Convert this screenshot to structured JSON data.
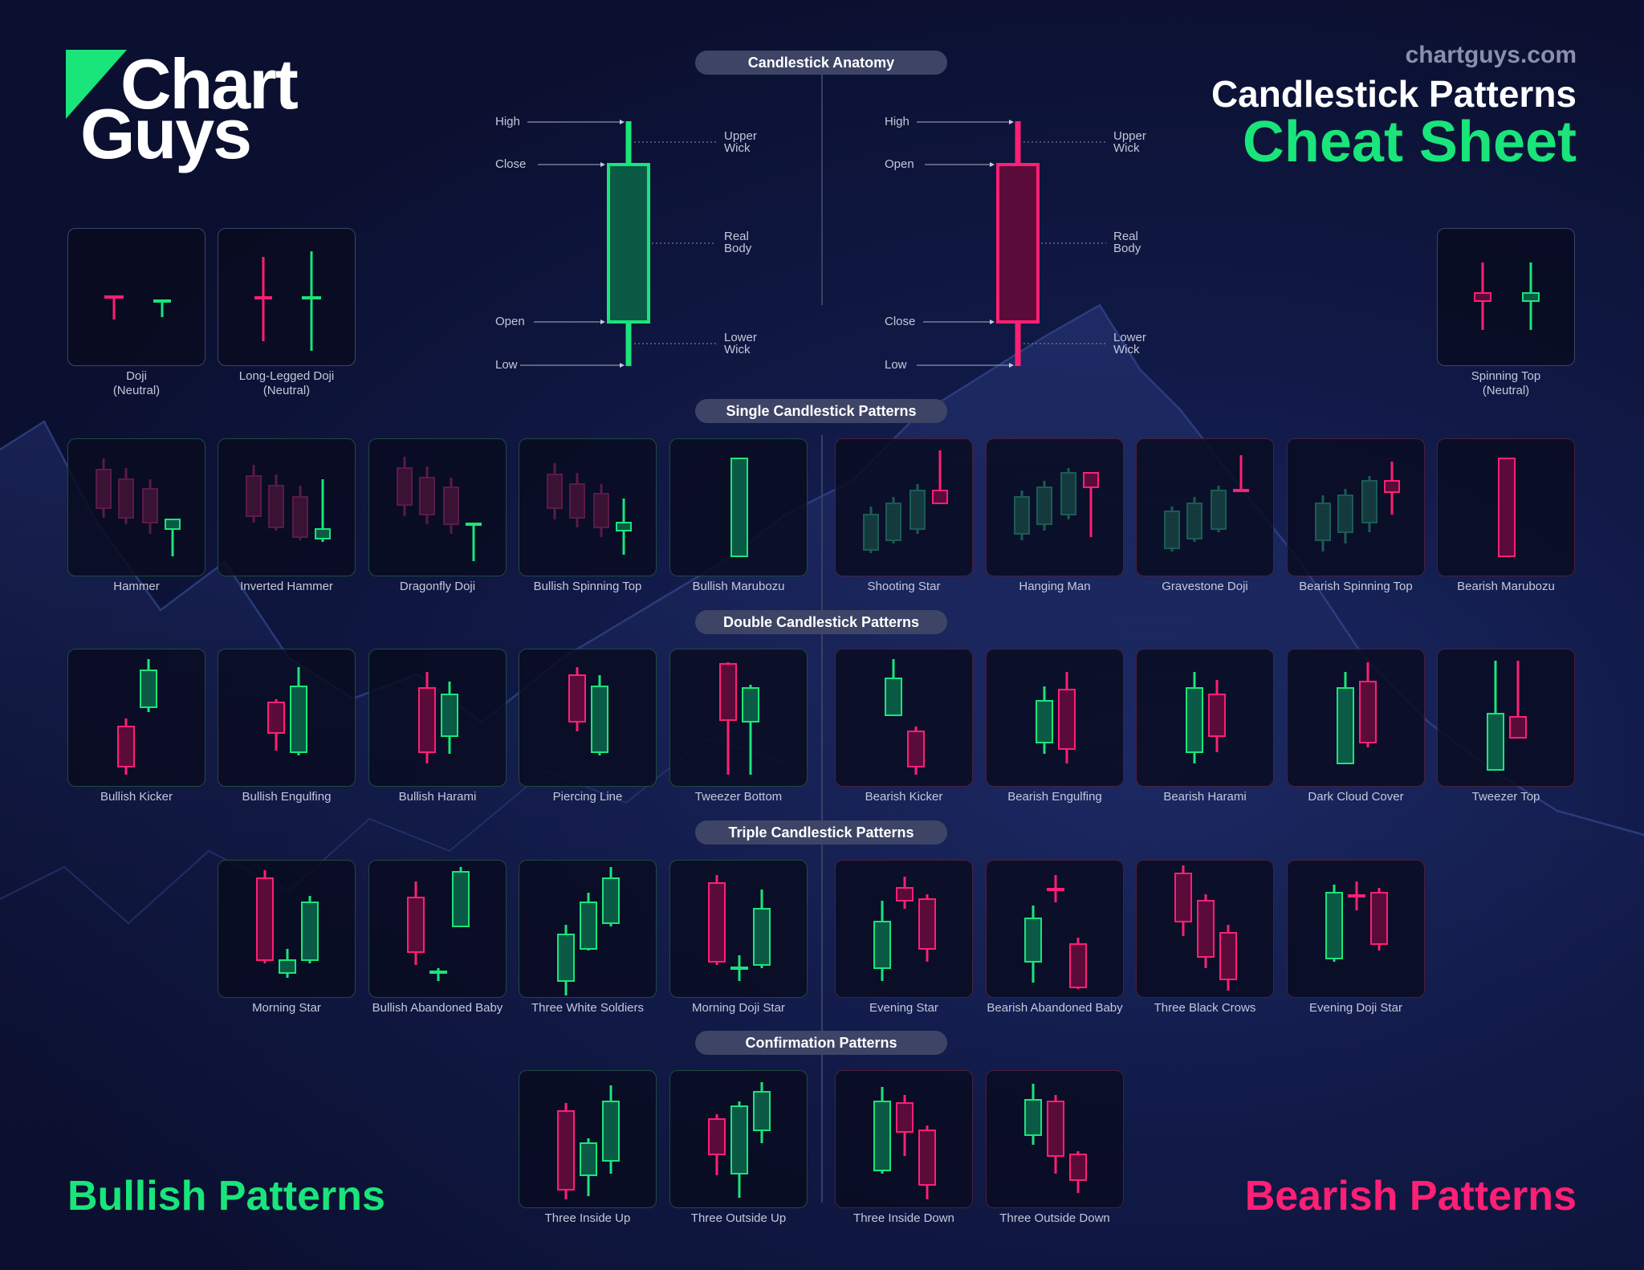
{
  "brand": {
    "logo_line1": "Chart",
    "logo_line2": "Guys",
    "site": "chartguys.com"
  },
  "header": {
    "title_line1": "Candlestick Patterns",
    "title_line2": "Cheat Sheet"
  },
  "colors": {
    "bullish": "#19e57a",
    "bearish": "#ff1f74",
    "background": "#0b1030",
    "pill": "#3d4466"
  },
  "sections": {
    "anatomy": "Candlestick Anatomy",
    "single": "Single Candlestick Patterns",
    "double": "Double Candlestick Patterns",
    "triple": "Triple Candlestick Patterns",
    "confirmation": "Confirmation Patterns"
  },
  "anatomy": {
    "bullish": {
      "high": "High",
      "close": "Close",
      "open": "Open",
      "low": "Low"
    },
    "bearish": {
      "high": "High",
      "open": "Open",
      "close": "Close",
      "low": "Low"
    },
    "parts": {
      "upper_wick": [
        "Upper",
        "Wick"
      ],
      "real_body": [
        "Real",
        "Body"
      ],
      "lower_wick": [
        "Lower",
        "Wick"
      ]
    }
  },
  "neutral": [
    {
      "name": "Doji",
      "sub": "(Neutral)"
    },
    {
      "name": "Long-Legged Doji",
      "sub": "(Neutral)"
    },
    {
      "name": "Spinning Top",
      "sub": "(Neutral)"
    }
  ],
  "single": [
    {
      "name": "Hammer",
      "side": "bull"
    },
    {
      "name": "Inverted Hammer",
      "side": "bull"
    },
    {
      "name": "Dragonfly Doji",
      "side": "bull"
    },
    {
      "name": "Bullish Spinning Top",
      "side": "bull"
    },
    {
      "name": "Bullish Marubozu",
      "side": "bull"
    },
    {
      "name": "Shooting Star",
      "side": "bear"
    },
    {
      "name": "Hanging Man",
      "side": "bear"
    },
    {
      "name": "Gravestone Doji",
      "side": "bear"
    },
    {
      "name": "Bearish Spinning Top",
      "side": "bear"
    },
    {
      "name": "Bearish Marubozu",
      "side": "bear"
    }
  ],
  "double": [
    {
      "name": "Bullish Kicker",
      "side": "bull"
    },
    {
      "name": "Bullish Engulfing",
      "side": "bull"
    },
    {
      "name": "Bullish Harami",
      "side": "bull"
    },
    {
      "name": "Piercing Line",
      "side": "bull"
    },
    {
      "name": "Tweezer Bottom",
      "side": "bull"
    },
    {
      "name": "Bearish Kicker",
      "side": "bear"
    },
    {
      "name": "Bearish Engulfing",
      "side": "bear"
    },
    {
      "name": "Bearish Harami",
      "side": "bear"
    },
    {
      "name": "Dark Cloud Cover",
      "side": "bear"
    },
    {
      "name": "Tweezer Top",
      "side": "bear"
    }
  ],
  "triple": [
    {
      "name": "Morning Star",
      "side": "bull"
    },
    {
      "name": "Bullish Abandoned Baby",
      "side": "bull"
    },
    {
      "name": "Three White Soldiers",
      "side": "bull"
    },
    {
      "name": "Morning Doji Star",
      "side": "bull"
    },
    {
      "name": "Evening Star",
      "side": "bear"
    },
    {
      "name": "Bearish Abandoned Baby",
      "side": "bear"
    },
    {
      "name": "Three Black Crows",
      "side": "bear"
    },
    {
      "name": "Evening Doji Star",
      "side": "bear"
    }
  ],
  "confirmation": [
    {
      "name": "Three Inside Up",
      "side": "bull"
    },
    {
      "name": "Three Outside Up",
      "side": "bull"
    },
    {
      "name": "Three Inside Down",
      "side": "bear"
    },
    {
      "name": "Three Outside Down",
      "side": "bear"
    }
  ],
  "footer": {
    "bullish": "Bullish Patterns",
    "bearish": "Bearish Patterns"
  }
}
